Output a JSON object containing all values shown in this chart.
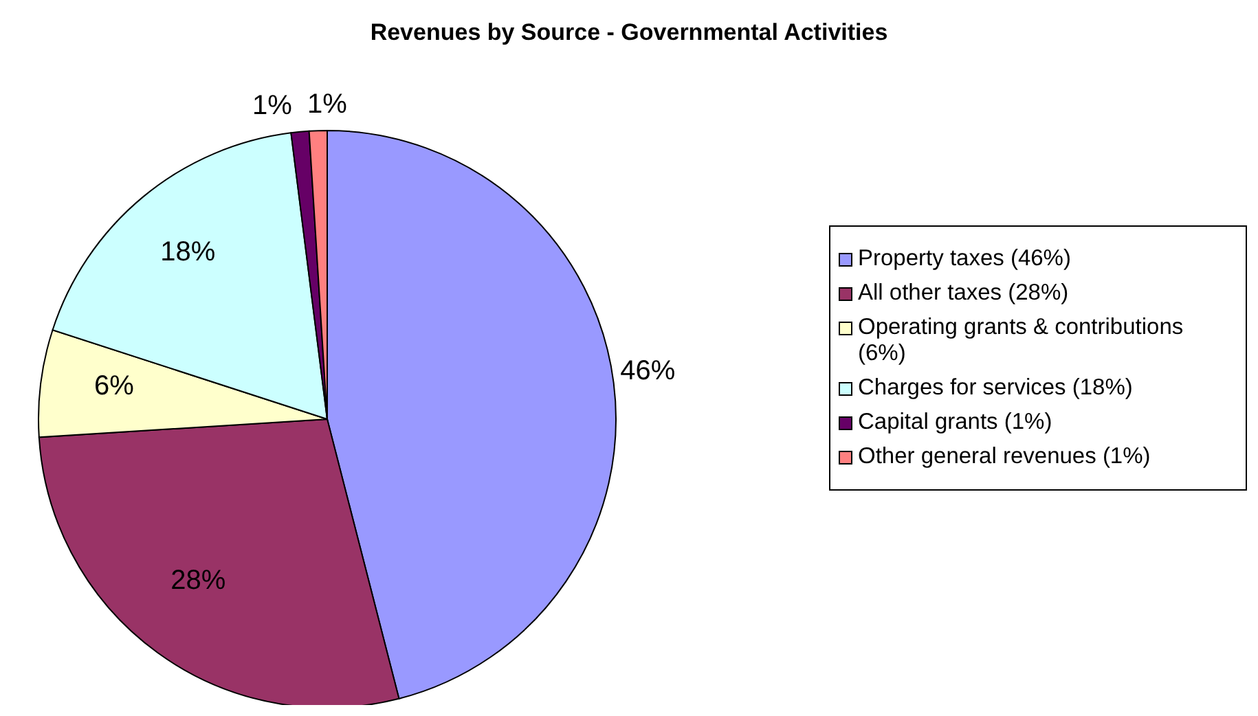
{
  "chart_data": {
    "type": "pie",
    "title": "Revenues by Source - Governmental Activities",
    "categories": [
      "Property taxes (46%)",
      "All other taxes (28%)",
      "Operating grants & contributions (6%)",
      "Charges for services (18%)",
      "Capital grants (1%)",
      "Other general revenues (1%)"
    ],
    "values": [
      46,
      28,
      6,
      18,
      1,
      1
    ],
    "colors": [
      "#9999ff",
      "#993366",
      "#ffffcc",
      "#ccffff",
      "#660066",
      "#ff8080"
    ],
    "value_labels": [
      "46%",
      "28%",
      "6%",
      "18%",
      "1%",
      "1%"
    ],
    "legend": "right"
  }
}
